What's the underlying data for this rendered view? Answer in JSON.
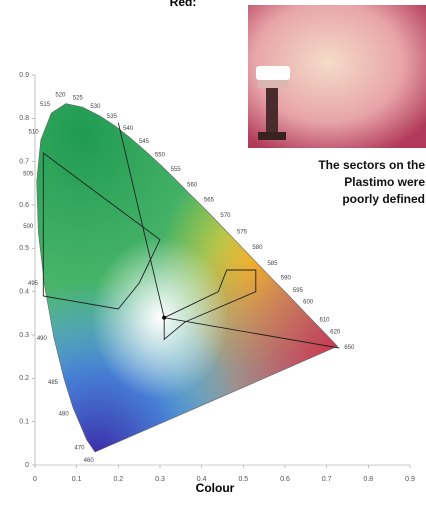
{
  "chart_data": {
    "type": "chromaticity",
    "title": "Red:",
    "xlabel": "Colour",
    "xlim": [
      0,
      0.9
    ],
    "ylim": [
      0,
      0.9
    ],
    "xticks": [
      0,
      0.1,
      0.2,
      0.3,
      0.4,
      0.5,
      0.6,
      0.7,
      0.8,
      0.9
    ],
    "yticks": [
      0,
      0.1,
      0.2,
      0.3,
      0.4,
      0.5,
      0.6,
      0.7,
      0.8,
      0.9
    ],
    "wavelength_labels": [
      460,
      470,
      480,
      485,
      490,
      495,
      500,
      505,
      510,
      515,
      520,
      525,
      530,
      535,
      540,
      545,
      550,
      555,
      560,
      565,
      570,
      575,
      580,
      585,
      590,
      595,
      600,
      610,
      620,
      650
    ],
    "caption": [
      "The sectors on the",
      "Plastimo were",
      "poorly defined"
    ]
  }
}
